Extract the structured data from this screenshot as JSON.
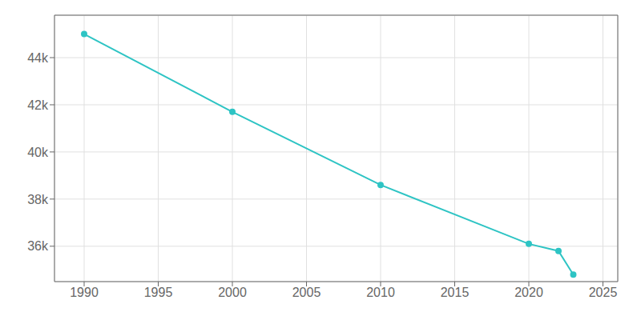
{
  "chart_data": {
    "type": "line",
    "x": [
      1990,
      2000,
      2010,
      2020,
      2022,
      2023
    ],
    "values": [
      45000,
      41700,
      38600,
      36100,
      35800,
      34800
    ],
    "color": "#2ec4c4",
    "marker": "circle",
    "xlim": [
      1988,
      2026
    ],
    "ylim": [
      34500,
      45800
    ],
    "xticks": [
      1990,
      1995,
      2000,
      2005,
      2010,
      2015,
      2020,
      2025
    ],
    "yticks": [
      {
        "value": 36000,
        "label": "36k"
      },
      {
        "value": 38000,
        "label": "38k"
      },
      {
        "value": 40000,
        "label": "40k"
      },
      {
        "value": 42000,
        "label": "42k"
      },
      {
        "value": 44000,
        "label": "44k"
      }
    ],
    "grid": true
  }
}
